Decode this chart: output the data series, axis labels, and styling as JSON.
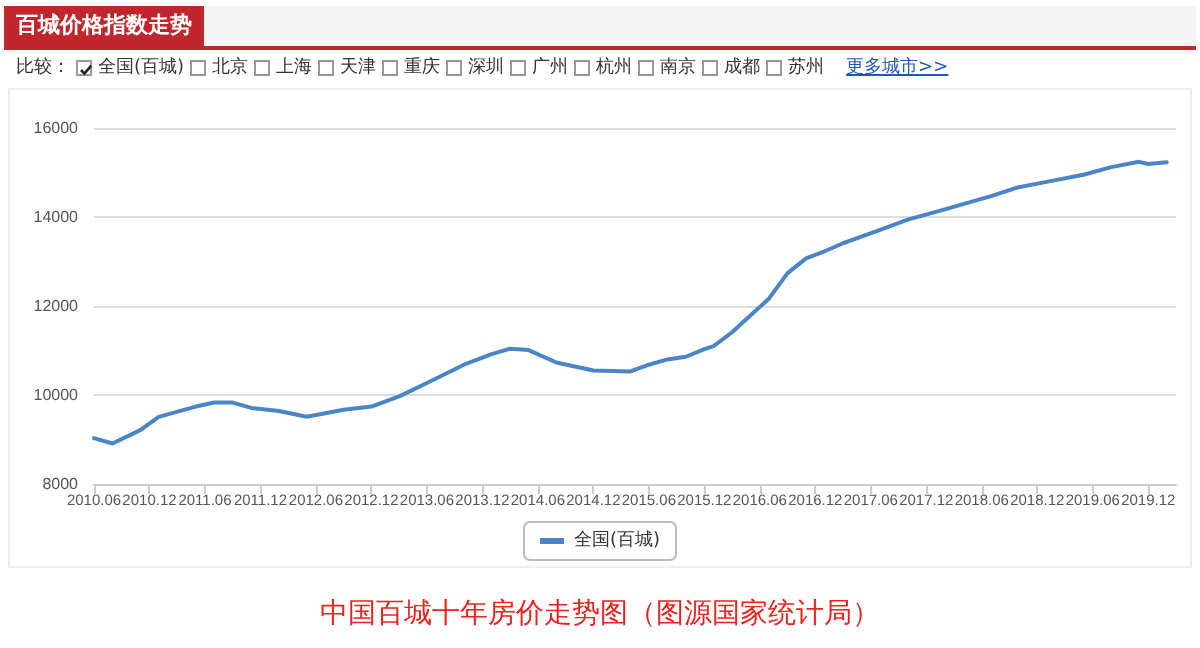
{
  "chart_data": {
    "type": "line",
    "title": "百城价格指数走势",
    "annotations": [
      "比较：",
      "全国(百城)",
      "北京",
      "上海",
      "天津",
      "重庆",
      "深圳",
      "广州",
      "杭州",
      "南京",
      "成都",
      "苏州",
      "更多城市>>",
      "中国百城十年房价走势图（图源国家统计局）"
    ],
    "x": [
      "2010-06",
      "2010-08",
      "2010-11",
      "2011-01",
      "2011-05",
      "2011-07",
      "2011-09",
      "2011-11",
      "2012-02",
      "2012-05",
      "2012-09",
      "2012-12",
      "2013-03",
      "2013-06",
      "2013-10",
      "2014-01",
      "2014-03",
      "2014-05",
      "2014-08",
      "2014-12",
      "2015-04",
      "2015-06",
      "2015-08",
      "2015-10",
      "2015-12",
      "2016-01",
      "2016-03",
      "2016-05",
      "2016-07",
      "2016-09",
      "2016-11",
      "2017-01",
      "2017-03",
      "2017-07",
      "2017-10",
      "2018-02",
      "2018-07",
      "2018-10",
      "2019-01",
      "2019-05",
      "2019-08",
      "2019-11",
      "2019-12",
      "2020-02"
    ],
    "series": [
      {
        "name": "全国(百城)",
        "color": "#4a86c5",
        "values": [
          9030,
          8910,
          9210,
          9510,
          9740,
          9830,
          9830,
          9710,
          9640,
          9510,
          9670,
          9740,
          9970,
          10270,
          10680,
          10920,
          11040,
          11010,
          10730,
          10550,
          10530,
          10680,
          10800,
          10860,
          11030,
          11100,
          11410,
          11790,
          12170,
          12740,
          13070,
          13230,
          13410,
          13710,
          13940,
          14170,
          14470,
          14670,
          14790,
          14950,
          15120,
          15240,
          15190,
          15230
        ]
      }
    ],
    "xlim": [
      "2010-06",
      "2020-03"
    ],
    "xticks": [
      {
        "value": "2010-06",
        "label": "2010.06"
      },
      {
        "value": "2010-12",
        "label": "2010.12"
      },
      {
        "value": "2011-06",
        "label": "2011.06"
      },
      {
        "value": "2011-12",
        "label": "2011.12"
      },
      {
        "value": "2012-06",
        "label": "2012.06"
      },
      {
        "value": "2012-12",
        "label": "2012.12"
      },
      {
        "value": "2013-06",
        "label": "2013.06"
      },
      {
        "value": "2013-12",
        "label": "2013.12"
      },
      {
        "value": "2014-06",
        "label": "2014.06"
      },
      {
        "value": "2014-12",
        "label": "2014.12"
      },
      {
        "value": "2015-06",
        "label": "2015.06"
      },
      {
        "value": "2015-12",
        "label": "2015.12"
      },
      {
        "value": "2016-06",
        "label": "2016.06"
      },
      {
        "value": "2016-12",
        "label": "2016.12"
      },
      {
        "value": "2017-06",
        "label": "2017.06"
      },
      {
        "value": "2017-12",
        "label": "2017.12"
      },
      {
        "value": "2018-06",
        "label": "2018.06"
      },
      {
        "value": "2018-12",
        "label": "2018.12"
      },
      {
        "value": "2019-06",
        "label": "2019.06"
      },
      {
        "value": "2019-12",
        "label": "2019.12"
      }
    ],
    "ylim": [
      8000,
      16000
    ],
    "yticks": [
      8000,
      10000,
      12000,
      14000,
      16000
    ],
    "grid": "y",
    "legend": "bottom",
    "marker": "none",
    "line_style": "solid"
  }
}
